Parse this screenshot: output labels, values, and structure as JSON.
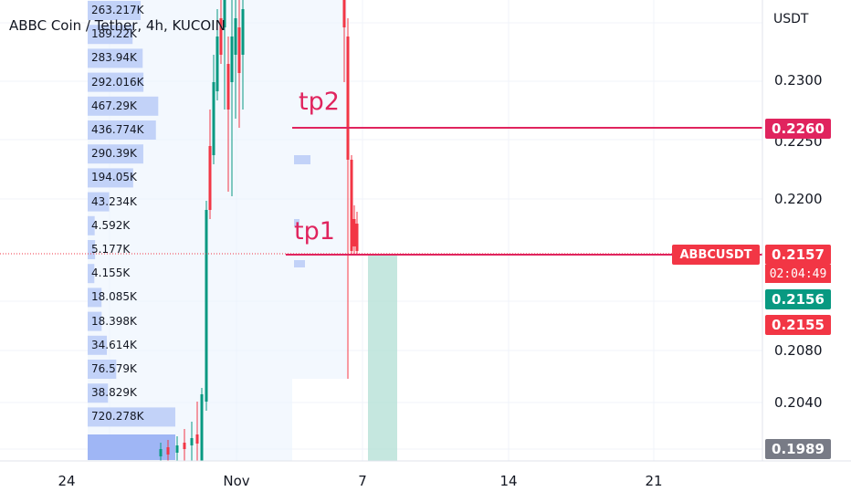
{
  "header": {
    "title": "ABBC Coin / Tether, 4h, KUCOIN",
    "unit": "USDT"
  },
  "chart_data": {
    "type": "line",
    "title": "ABBC Coin / Tether, 4h, KUCOIN",
    "ylabel": "USDT",
    "price_ticks": [
      "0.2300",
      "0.2250",
      "0.2200",
      "0.2080",
      "0.2040"
    ],
    "time_ticks": [
      "24",
      "Nov",
      "7",
      "14",
      "21"
    ],
    "volume_profile": [
      "263.217K",
      "189.22K",
      "283.94K",
      "292.016K",
      "467.29K",
      "436.774K",
      "290.39K",
      "194.05K",
      "43.234K",
      "4.592K",
      "5.177K",
      "4.155K",
      "18.085K",
      "18.398K",
      "34.614K",
      "76.579K",
      "38.829K",
      "720.278K"
    ],
    "annotations": [
      "tp2",
      "tp1"
    ],
    "levels": {
      "tp2": "0.2260",
      "tp1": "0.2157"
    }
  },
  "price_tags": {
    "tp2": "0.2260",
    "symbol": "ABBCUSDT",
    "last": "0.2157",
    "countdown": "02:04:49",
    "ask": "0.2156",
    "bid": "0.2155",
    "low": "0.1989"
  },
  "colors": {
    "up": "#089981",
    "down": "#f23645",
    "line": "#e0245e",
    "profile": "#9fb6f5",
    "zone": "#b2dfd4",
    "gray": "#787b86"
  }
}
